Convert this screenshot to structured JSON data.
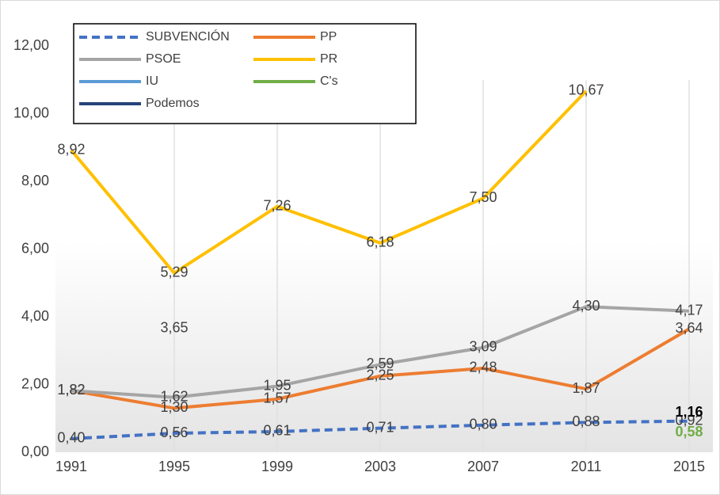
{
  "chart_data": {
    "type": "line",
    "categories": [
      "1991",
      "1995",
      "1999",
      "2003",
      "2007",
      "2011",
      "2015"
    ],
    "ylim": [
      0,
      12
    ],
    "yticks": [
      {
        "value": 0,
        "label": "0,00"
      },
      {
        "value": 2,
        "label": "2,00"
      },
      {
        "value": 4,
        "label": "4,00"
      },
      {
        "value": 6,
        "label": "6,00"
      },
      {
        "value": 8,
        "label": "8,00"
      },
      {
        "value": 10,
        "label": "10,00"
      },
      {
        "value": 12,
        "label": "12,00"
      }
    ],
    "legend": "top-left",
    "series": [
      {
        "name": "SUBVENCIÓN",
        "color": "#4472c4",
        "dashed": true,
        "label_color": "#404040",
        "label_bold": false,
        "values": [
          0.4,
          0.56,
          0.61,
          0.71,
          0.8,
          0.88,
          0.92
        ],
        "value_labels": [
          "0,40",
          "0,56",
          "0,61",
          "0,71",
          "0,80",
          "0,88",
          "0,92"
        ]
      },
      {
        "name": "PP",
        "color": "#ed7d31",
        "dashed": false,
        "label_color": "#404040",
        "label_bold": false,
        "values": [
          1.82,
          1.3,
          1.57,
          2.25,
          2.48,
          1.87,
          3.64
        ],
        "value_labels": [
          "1,82",
          "1,30",
          "1,57",
          "2,25",
          "2,48",
          "1,87",
          "3,64"
        ]
      },
      {
        "name": "PSOE",
        "color": "#a5a5a5",
        "dashed": false,
        "label_color": "#404040",
        "label_bold": false,
        "values": [
          1.82,
          1.62,
          1.95,
          2.59,
          3.09,
          4.3,
          4.17
        ],
        "value_labels": [
          "1,82",
          "1,62",
          "1,95",
          "2,59",
          "3,09",
          "4,30",
          "4,17"
        ]
      },
      {
        "name": "PR",
        "color": "#ffc000",
        "dashed": false,
        "label_color": "#404040",
        "label_bold": false,
        "values": [
          8.92,
          5.29,
          7.26,
          6.18,
          7.5,
          10.67,
          null
        ],
        "value_labels": [
          "8,92",
          "5,29",
          "7,26",
          "6,18",
          "7,50",
          "10,67",
          null
        ]
      },
      {
        "name": "IU",
        "color": "#5b9bd5",
        "dashed": false,
        "label_color": "#404040",
        "label_bold": false,
        "values": [
          null,
          3.65,
          null,
          null,
          null,
          null,
          null
        ],
        "value_labels": [
          null,
          "3,65",
          null,
          null,
          null,
          null,
          null
        ]
      },
      {
        "name": "C's",
        "color": "#70ad47",
        "dashed": false,
        "label_color": "#70ad47",
        "label_bold": true,
        "values": [
          null,
          null,
          null,
          null,
          null,
          null,
          0.58
        ],
        "value_labels": [
          null,
          null,
          null,
          null,
          null,
          null,
          "0,58"
        ]
      },
      {
        "name": "Podemos",
        "color": "#264478",
        "dashed": false,
        "label_color": "#000000",
        "label_bold": true,
        "values": [
          null,
          null,
          null,
          null,
          null,
          null,
          1.16
        ],
        "value_labels": [
          null,
          null,
          null,
          null,
          null,
          null,
          "1,16"
        ]
      }
    ]
  }
}
